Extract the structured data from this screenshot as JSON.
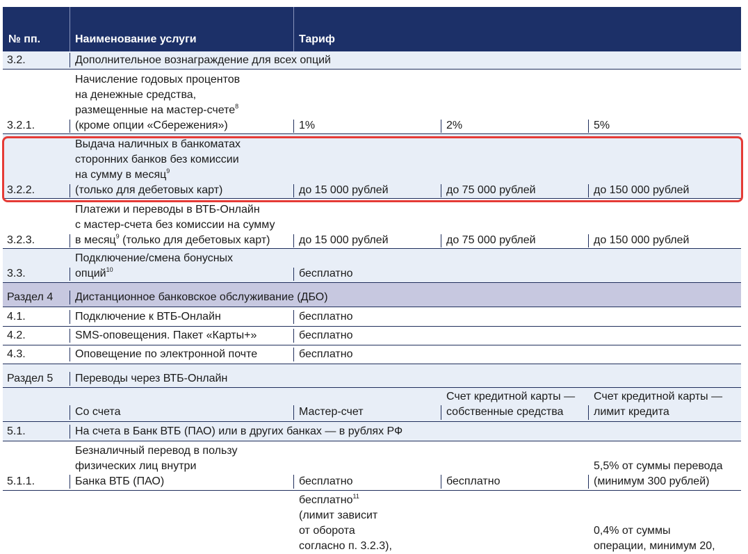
{
  "header": {
    "col1": "№ пп.",
    "col2": "Наименование услуги",
    "col3": "Тариф"
  },
  "rows": {
    "r32": {
      "num": "3.2.",
      "name": "Дополнительное вознаграждение для всех опций"
    },
    "r321": {
      "num": "3.2.1.",
      "name": [
        "Начисление годовых процентов",
        "на денежные средства,",
        "размещенные на мастер-счете",
        "(кроме опции «Сбережения»)"
      ],
      "sup": "8",
      "t1": "1%",
      "t2": "2%",
      "t3": "5%"
    },
    "r322": {
      "num": "3.2.2.",
      "name": [
        "Выдача наличных в банкоматах",
        "сторонних банков без комиссии",
        "на сумму в месяц",
        "(только для дебетовых карт)"
      ],
      "sup": "9",
      "t1": "до 15 000 рублей",
      "t2": "до 75 000 рублей",
      "t3": "до 150 000 рублей"
    },
    "r323": {
      "num": "3.2.3.",
      "name": [
        "Платежи и переводы в ВТБ-Онлайн",
        "с мастер-счета без комиссии на сумму",
        "в месяц",
        " (только для дебетовых карт)"
      ],
      "sup": "9",
      "t1": "до 15 000 рублей",
      "t2": "до 75 000 рублей",
      "t3": "до 150 000 рублей"
    },
    "r33": {
      "num": "3.3.",
      "name": [
        "Подключение/смена бонусных",
        "опций"
      ],
      "sup": "10",
      "t1": "бесплатно"
    },
    "s4": {
      "num": "Раздел 4",
      "name": "Дистанционное банковское обслуживание (ДБО)"
    },
    "r41": {
      "num": "4.1.",
      "name": "Подключение к ВТБ-Онлайн",
      "t1": "бесплатно"
    },
    "r42": {
      "num": "4.2.",
      "name": "SMS-оповещения. Пакет «Карты+»",
      "t1": "бесплатно"
    },
    "r43": {
      "num": "4.3.",
      "name": "Оповещение по электронной почте",
      "t1": "бесплатно"
    },
    "s5": {
      "num": "Раздел 5",
      "name": "Переводы через ВТБ-Онлайн"
    },
    "sub": {
      "from": "Со счета",
      "t1": "Мастер-счет",
      "t2": [
        "Счет кредитной карты —",
        "собственные средства"
      ],
      "t3": [
        "Счет кредитной карты —",
        "лимит кредита"
      ]
    },
    "r51": {
      "num": "5.1.",
      "name": "На счета в Банк ВТБ (ПАО) или в других банках — в рублях РФ"
    },
    "r511": {
      "num": "5.1.1.",
      "name": [
        "Безналичный перевод в пользу",
        "физических лиц внутри",
        "Банка ВТБ (ПАО)"
      ],
      "t1": "бесплатно",
      "t2": "бесплатно",
      "t3": [
        "5,5% от суммы перевода",
        "(минимум 300 рублей)"
      ]
    },
    "r512": {
      "t1": [
        "бесплатно",
        "(лимит зависит",
        "от оборота",
        "согласно п. 3.2.3),"
      ],
      "sup": "11",
      "t3": [
        "0,4% от суммы",
        "операции, минимум 20,"
      ]
    }
  }
}
